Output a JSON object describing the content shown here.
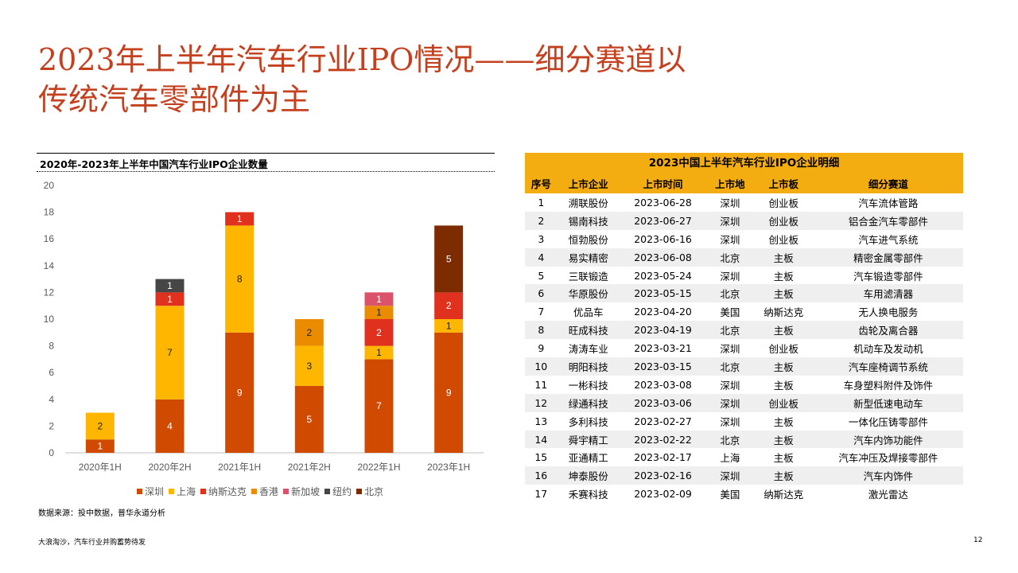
{
  "title": {
    "line1": "2023年上半年汽车行业IPO情况——细分赛道以",
    "line2": "传统汽车零部件为主"
  },
  "chart_title": "2020年-2023年上半年中国汽车行业IPO企业数量",
  "chart_data": {
    "type": "bar",
    "stacked": true,
    "title": "2020年-2023年上半年中国汽车行业IPO企业数量",
    "categories": [
      "2020年1H",
      "2020年2H",
      "2021年1H",
      "2021年2H",
      "2022年1H",
      "2023年1H"
    ],
    "ylim": [
      0,
      20
    ],
    "yticks": [
      0,
      2,
      4,
      6,
      8,
      10,
      12,
      14,
      16,
      18,
      20
    ],
    "grid": false,
    "legend_position": "bottom",
    "series": [
      {
        "name": "深圳",
        "color": "#d04a02",
        "values": [
          1,
          4,
          9,
          5,
          7,
          9
        ]
      },
      {
        "name": "上海",
        "color": "#ffb600",
        "values": [
          2,
          7,
          8,
          3,
          1,
          1
        ]
      },
      {
        "name": "纳斯达克",
        "color": "#e0301e",
        "values": [
          0,
          1,
          1,
          0,
          2,
          2
        ]
      },
      {
        "name": "香港",
        "color": "#eb8c00",
        "values": [
          0,
          0,
          0,
          2,
          1,
          0
        ]
      },
      {
        "name": "新加坡",
        "color": "#db536a",
        "values": [
          0,
          0,
          0,
          0,
          1,
          0
        ]
      },
      {
        "name": "纽约",
        "color": "#464646",
        "values": [
          0,
          1,
          0,
          0,
          0,
          0
        ]
      },
      {
        "name": "北京",
        "color": "#7d2b00",
        "values": [
          0,
          0,
          0,
          0,
          0,
          5
        ]
      }
    ]
  },
  "source": "数据来源：投中数据，普华永道分析",
  "footer": "大浪淘沙，汽车行业并购蓄势待发",
  "page_number": "12",
  "table": {
    "title": "2023中国上半年汽车行业IPO企业明细",
    "headers": [
      "序号",
      "上市企业",
      "上市时间",
      "上市地",
      "上市板",
      "细分赛道"
    ],
    "rows": [
      [
        "1",
        "溯联股份",
        "2023-06-28",
        "深圳",
        "创业板",
        "汽车流体管路"
      ],
      [
        "2",
        "锡南科技",
        "2023-06-27",
        "深圳",
        "创业板",
        "铝合金汽车零部件"
      ],
      [
        "3",
        "恒勃股份",
        "2023-06-16",
        "深圳",
        "创业板",
        "汽车进气系统"
      ],
      [
        "4",
        "易实精密",
        "2023-06-08",
        "北京",
        "主板",
        "精密金属零部件"
      ],
      [
        "5",
        "三联锻造",
        "2023-05-24",
        "深圳",
        "主板",
        "汽车锻造零部件"
      ],
      [
        "6",
        "华原股份",
        "2023-05-15",
        "北京",
        "主板",
        "车用滤清器"
      ],
      [
        "7",
        "优品车",
        "2023-04-20",
        "美国",
        "纳斯达克",
        "无人换电服务"
      ],
      [
        "8",
        "旺成科技",
        "2023-04-19",
        "北京",
        "主板",
        "齿轮及离合器"
      ],
      [
        "9",
        "涛涛车业",
        "2023-03-21",
        "深圳",
        "创业板",
        "机动车及发动机"
      ],
      [
        "10",
        "明阳科技",
        "2023-03-15",
        "北京",
        "主板",
        "汽车座椅调节系统"
      ],
      [
        "11",
        "一彬科技",
        "2023-03-08",
        "深圳",
        "主板",
        "车身塑料附件及饰件"
      ],
      [
        "12",
        "绿通科技",
        "2023-03-06",
        "深圳",
        "创业板",
        "新型低速电动车"
      ],
      [
        "13",
        "多利科技",
        "2023-02-27",
        "深圳",
        "主板",
        "一体化压铸零部件"
      ],
      [
        "14",
        "舜宇精工",
        "2023-02-22",
        "北京",
        "主板",
        "汽车内饰功能件"
      ],
      [
        "15",
        "亚通精工",
        "2023-02-17",
        "上海",
        "主板",
        "汽车冲压及焊接零部件"
      ],
      [
        "16",
        "坤泰股份",
        "2023-02-16",
        "深圳",
        "主板",
        "汽车内饰件"
      ],
      [
        "17",
        "禾赛科技",
        "2023-02-09",
        "美国",
        "纳斯达克",
        "激光雷达"
      ]
    ]
  }
}
